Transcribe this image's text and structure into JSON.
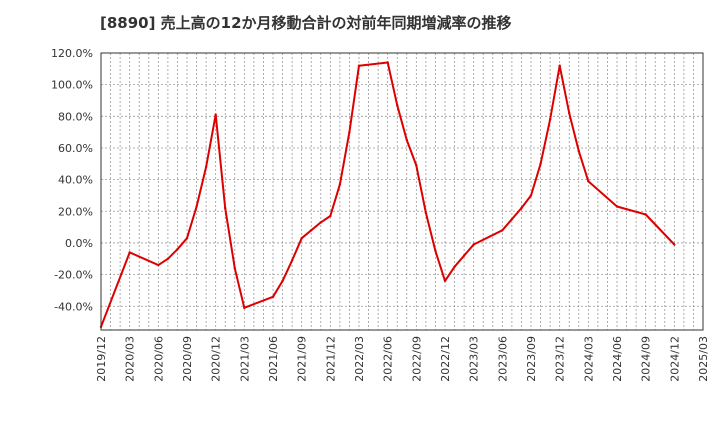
{
  "chart_data": {
    "type": "line",
    "title": "[8890]  売上高の12か月移動合計の対前年同期増減率の推移",
    "xlabel": "",
    "ylabel": "",
    "ylim": [
      -55,
      120
    ],
    "yticks": [
      -40,
      -20,
      0,
      20,
      40,
      60,
      80,
      100,
      120
    ],
    "ytick_labels": [
      "-40.0%",
      "-20.0%",
      "0.0%",
      "20.0%",
      "40.0%",
      "60.0%",
      "80.0%",
      "100.0%",
      "120.0%"
    ],
    "x_start": "2019-12",
    "x_end": "2025-03",
    "xtick_labels": [
      "2019/12",
      "2020/03",
      "2020/06",
      "2020/09",
      "2020/12",
      "2021/03",
      "2021/06",
      "2021/09",
      "2021/12",
      "2022/03",
      "2022/06",
      "2022/09",
      "2022/12",
      "2023/03",
      "2023/06",
      "2023/09",
      "2023/12",
      "2024/03",
      "2024/06",
      "2024/09",
      "2024/12",
      "2025/03"
    ],
    "grid": true,
    "series": [
      {
        "name": "増減率",
        "color": "#dd0000",
        "x": [
          "2019-12",
          "2020-03",
          "2020-06",
          "2020-07",
          "2020-08",
          "2020-09",
          "2020-10",
          "2020-11",
          "2020-12",
          "2021-01",
          "2021-02",
          "2021-03",
          "2021-06",
          "2021-07",
          "2021-08",
          "2021-09",
          "2021-10",
          "2021-11",
          "2021-12",
          "2022-01",
          "2022-02",
          "2022-03",
          "2022-06",
          "2022-07",
          "2022-08",
          "2022-09",
          "2022-10",
          "2022-11",
          "2022-12",
          "2023-01",
          "2023-02",
          "2023-03",
          "2023-06",
          "2023-07",
          "2023-08",
          "2023-09",
          "2023-10",
          "2023-11",
          "2023-12",
          "2024-01",
          "2024-02",
          "2024-03",
          "2024-06",
          "2024-09",
          "2024-12"
        ],
        "values": [
          -53,
          -6,
          -14,
          -10,
          -4,
          3,
          23,
          48,
          81,
          22,
          -16,
          -41,
          -34,
          -24,
          -11,
          3,
          8,
          13,
          17,
          37,
          70,
          112,
          114,
          87,
          65,
          49,
          19,
          -5,
          -24,
          -15,
          -8,
          -1,
          8,
          15,
          22,
          30,
          50,
          78,
          112,
          82,
          58,
          39,
          23,
          18,
          -1
        ]
      }
    ]
  }
}
